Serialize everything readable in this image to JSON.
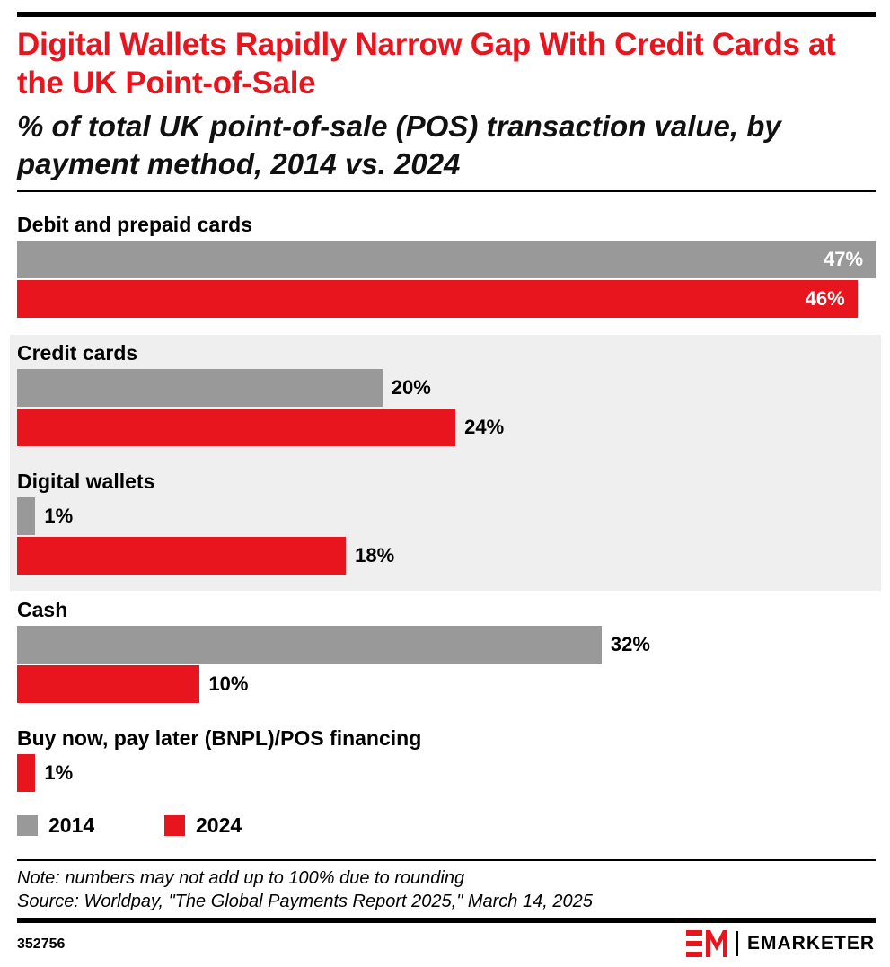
{
  "header": {
    "title": "Digital Wallets Rapidly Narrow Gap With Credit Cards at the UK Point-of-Sale",
    "subtitle": "% of total UK point-of-sale (POS) transaction value, by payment method, 2014 vs. 2024"
  },
  "chart_data": {
    "type": "bar",
    "orientation": "horizontal",
    "unit": "%",
    "categories": [
      "Debit and prepaid cards",
      "Credit cards",
      "Digital wallets",
      "Cash",
      "Buy now, pay later (BNPL)/POS financing"
    ],
    "series": [
      {
        "name": "2014",
        "color": "#999999",
        "values": [
          47,
          20,
          1,
          32,
          null
        ],
        "labels": [
          "47%",
          "20%",
          "1%",
          "32%",
          ""
        ]
      },
      {
        "name": "2024",
        "color": "#e8151f",
        "values": [
          46,
          24,
          18,
          10,
          1
        ],
        "labels": [
          "46%",
          "24%",
          "18%",
          "10%",
          "1%"
        ]
      }
    ],
    "xlim": [
      0,
      47
    ],
    "legend_position": "bottom-left",
    "grid": false,
    "highlighted_categories": [
      "Credit cards",
      "Digital wallets"
    ]
  },
  "footer": {
    "note": "Note: numbers may not add up to 100% due to rounding",
    "source": "Source: Worldpay, \"The Global Payments Report 2025,\" March 14, 2025",
    "chart_id": "352756",
    "brand": "EMARKETER"
  },
  "colors": {
    "accent": "#e8151f",
    "gray": "#999999",
    "highlight_band": "#efefef"
  }
}
